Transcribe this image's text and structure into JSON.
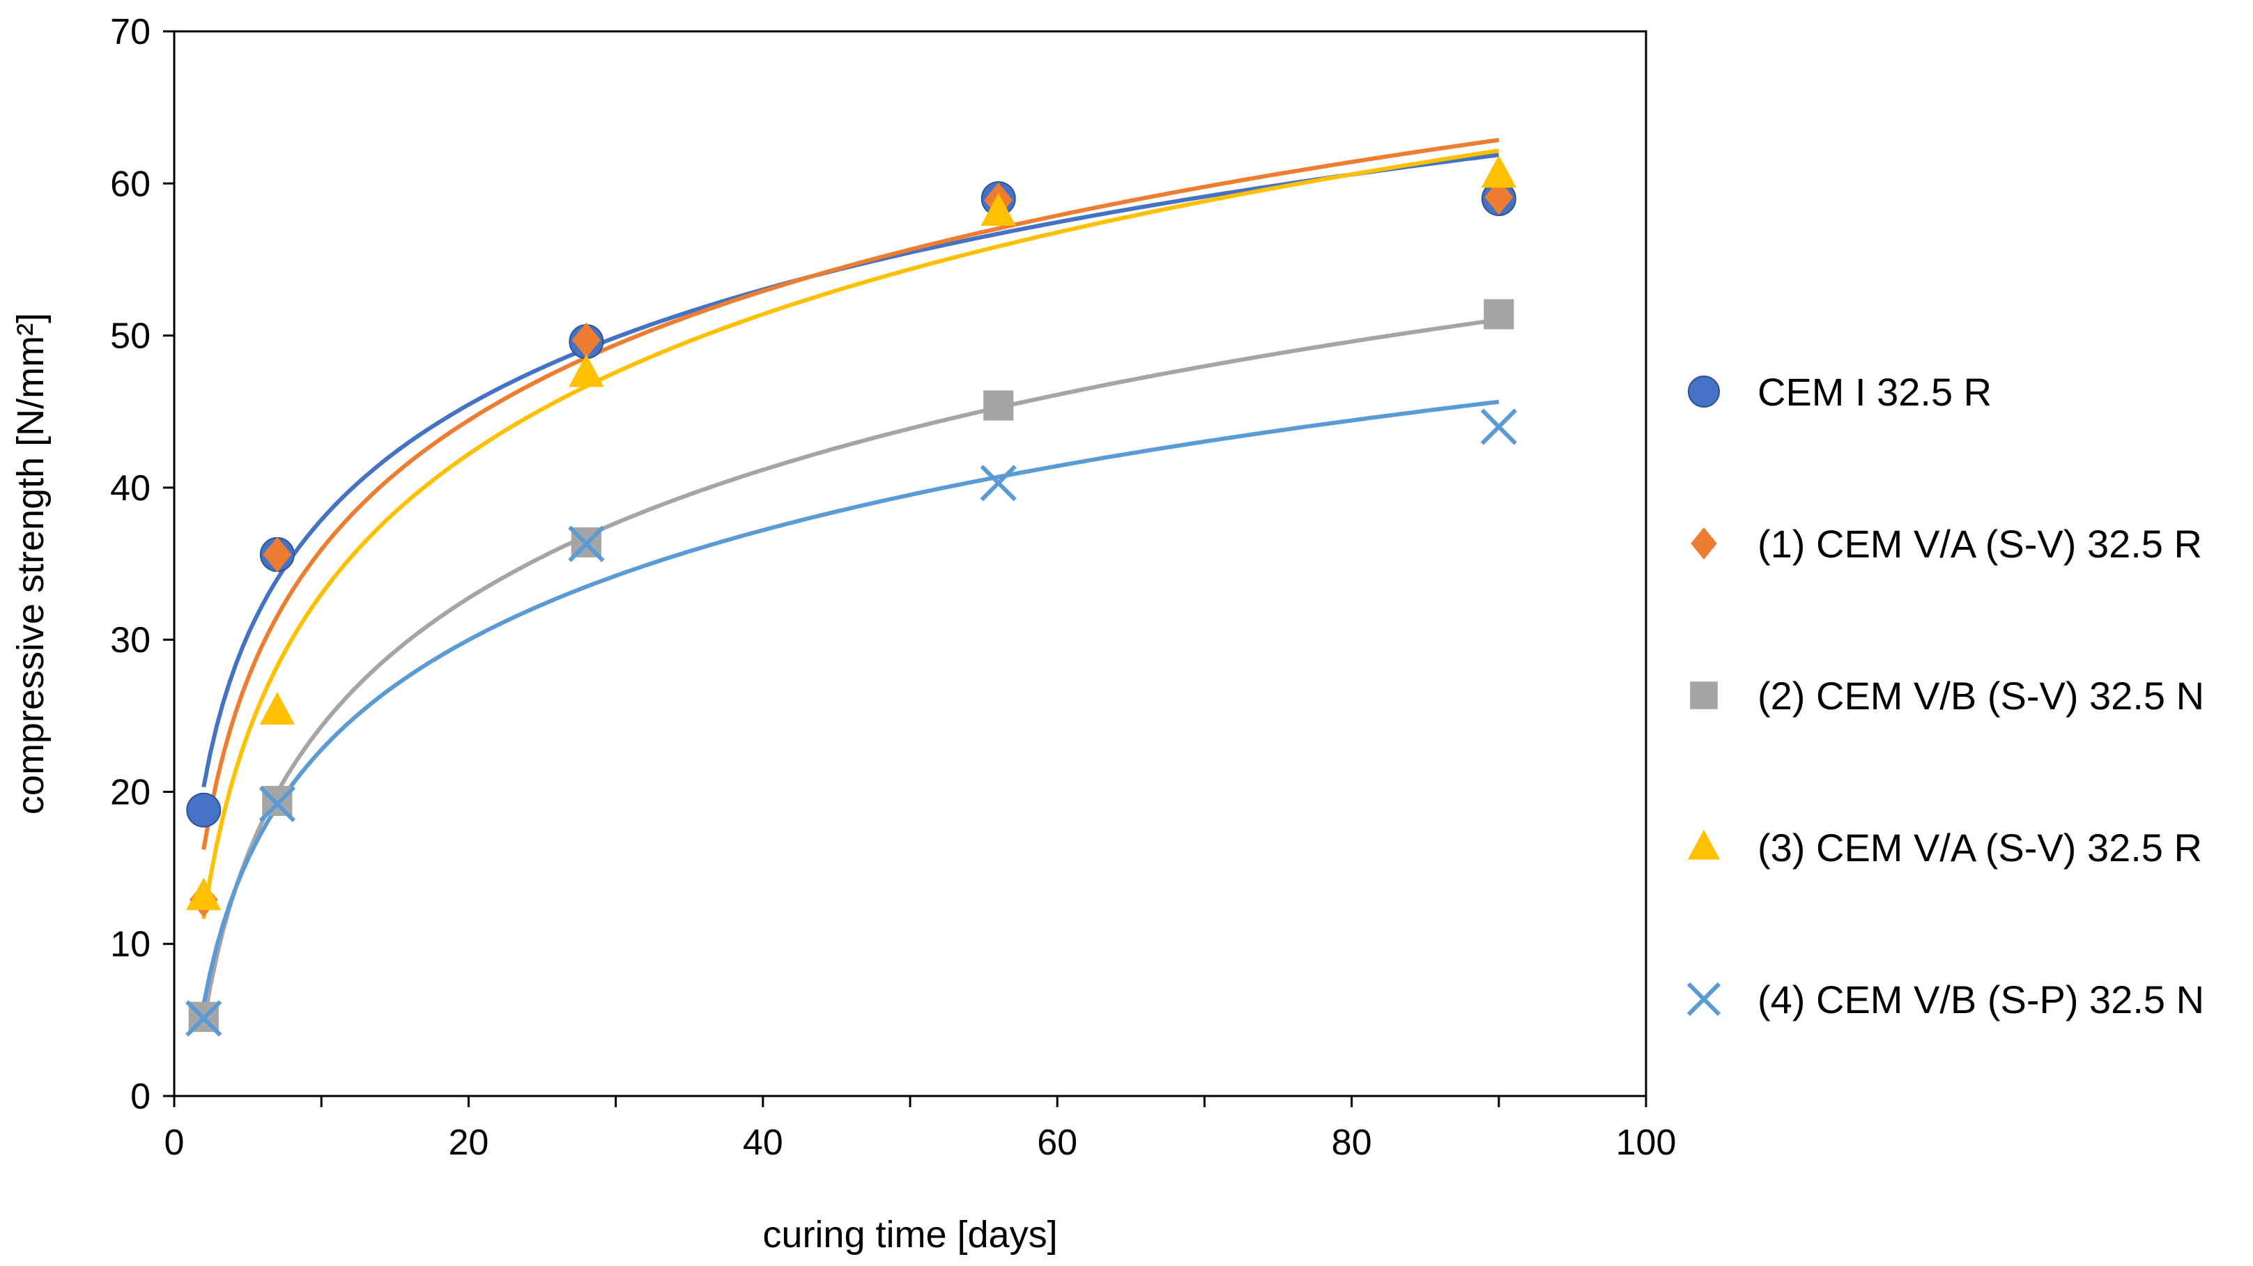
{
  "chart_data": {
    "type": "scatter",
    "xlabel": "curing time [days]",
    "ylabel": "compressive strength [N/mm²]",
    "xlim": [
      0,
      100
    ],
    "ylim": [
      0,
      70
    ],
    "xticks": [
      0,
      20,
      40,
      60,
      80,
      100
    ],
    "yticks": [
      0,
      10,
      20,
      30,
      40,
      50,
      60,
      70
    ],
    "grid": false,
    "legend_position": "right",
    "trendline": "logarithmic",
    "series": [
      {
        "name": "CEM I 32.5 R",
        "marker": "circle",
        "color": "#4472C4",
        "line_color": "#4472C4",
        "x": [
          2,
          7,
          28,
          56,
          90
        ],
        "y": [
          18.8,
          35.6,
          49.6,
          59.0,
          59.0
        ]
      },
      {
        "name": "(1) CEM V/A (S-V) 32.5 R",
        "marker": "diamond",
        "color": "#ED7D31",
        "line_color": "#ED7D31",
        "x": [
          2,
          7,
          28,
          56,
          90
        ],
        "y": [
          12.9,
          35.6,
          49.7,
          58.9,
          59.1
        ]
      },
      {
        "name": "(2) CEM V/B (S-V) 32.5 N",
        "marker": "square",
        "color": "#A5A5A5",
        "line_color": "#A5A5A5",
        "x": [
          2,
          7,
          28,
          56,
          90
        ],
        "y": [
          5.2,
          19.4,
          36.4,
          45.4,
          51.4
        ]
      },
      {
        "name": "(3) CEM V/A (S-V) 32.5 R",
        "marker": "triangle",
        "color": "#FFC000",
        "line_color": "#FFC000",
        "x": [
          2,
          7,
          28,
          56,
          90
        ],
        "y": [
          13.1,
          25.3,
          47.5,
          58.1,
          60.6
        ]
      },
      {
        "name": "(4) CEM V/B (S-P) 32.5 N",
        "marker": "cross",
        "color": "#5B9BD5",
        "line_color": "#5B9BD5",
        "x": [
          2,
          7,
          28,
          56,
          90
        ],
        "y": [
          5.1,
          19.2,
          36.3,
          40.3,
          44.0
        ]
      }
    ]
  }
}
